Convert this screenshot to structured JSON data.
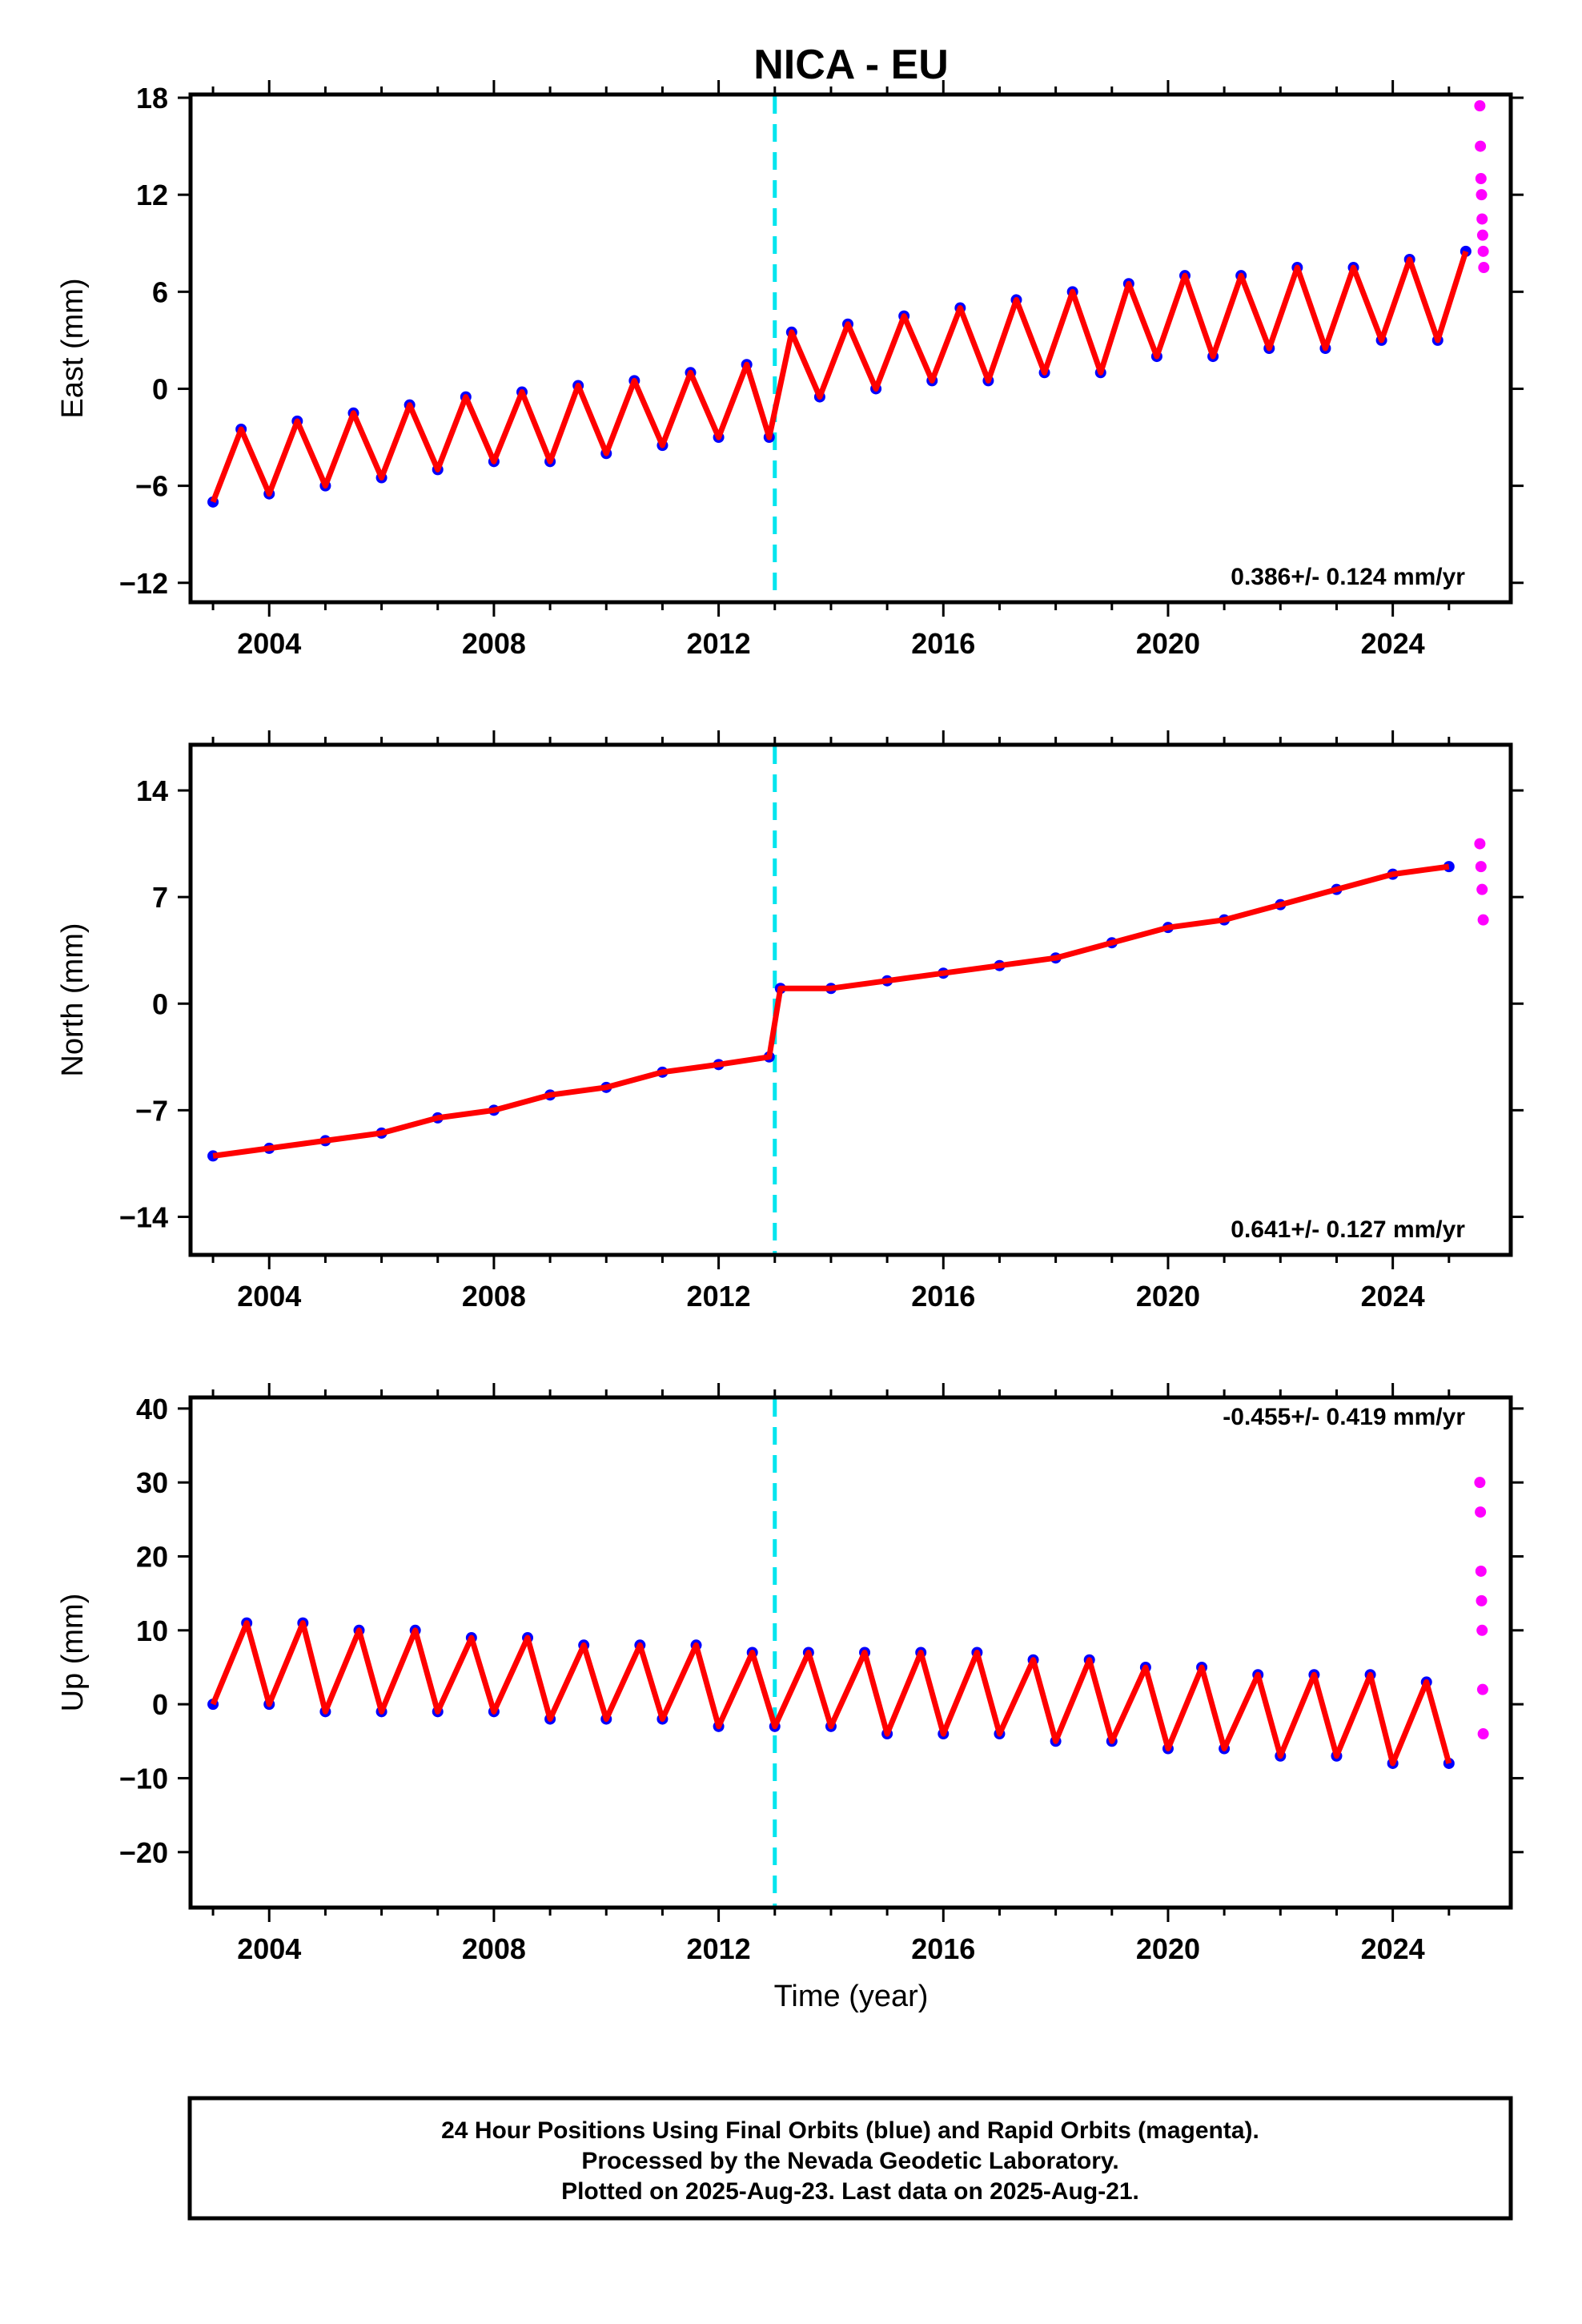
{
  "chart_data": {
    "type": "scatter",
    "title": "NICA - EU",
    "xlabel": "Time (year)",
    "xlim": [
      2002.6,
      2026.1
    ],
    "x_ticks": [
      2004,
      2008,
      2012,
      2016,
      2020,
      2024
    ],
    "x_tick_labels": [
      "2004",
      "2008",
      "2012",
      "2016",
      "2020",
      "2024"
    ],
    "discontinuity_year": 2013.0,
    "colors": {
      "final_orbits": "#0000ff",
      "rapid_orbits": "#ff00ff",
      "model": "#ff0000",
      "discontinuity": "#00e5ee"
    },
    "legend_text": "24 Hour Positions Using Final Orbits (blue) and Rapid Orbits (magenta).",
    "panels": [
      {
        "component": "east",
        "ylabel": "East (mm)",
        "ylim": [
          -13.2,
          18.2
        ],
        "y_ticks": [
          -12,
          -6,
          0,
          6,
          12,
          18
        ],
        "y_tick_labels": [
          "−12",
          "−6",
          "0",
          "6",
          "12",
          "18"
        ],
        "rate_text": "0.386+/- 0.124 mm/yr",
        "rate_position": "bottom-right",
        "series": [
          {
            "name": "Final Orbits (blue)",
            "color": "#0000ff",
            "x": [
              2003.0,
              2003.5,
              2004.0,
              2004.5,
              2005.0,
              2005.5,
              2006.0,
              2006.5,
              2007.0,
              2007.5,
              2008.0,
              2008.5,
              2009.0,
              2009.5,
              2010.0,
              2010.5,
              2011.0,
              2011.5,
              2012.0,
              2012.5,
              2012.9,
              2013.3,
              2013.8,
              2014.3,
              2014.8,
              2015.3,
              2015.8,
              2016.3,
              2016.8,
              2017.3,
              2017.8,
              2018.3,
              2018.8,
              2019.3,
              2019.8,
              2020.3,
              2020.8,
              2021.3,
              2021.8,
              2022.3,
              2022.8,
              2023.3,
              2023.8,
              2024.3,
              2024.8,
              2025.3
            ],
            "y": [
              -7,
              -2.5,
              -6.5,
              -2,
              -6,
              -1.5,
              -5.5,
              -1,
              -5,
              -0.5,
              -4.5,
              -0.2,
              -4.5,
              0.2,
              -4,
              0.5,
              -3.5,
              1,
              -3,
              1.5,
              -3,
              3.5,
              -0.5,
              4,
              0,
              4.5,
              0.5,
              5,
              0.5,
              5.5,
              1,
              6,
              1,
              6.5,
              2,
              7,
              2,
              7,
              2.5,
              7.5,
              2.5,
              7.5,
              3,
              8,
              3,
              8.5
            ]
          },
          {
            "name": "Rapid Orbits (magenta)",
            "color": "#ff00ff",
            "x": [
              2025.55,
              2025.56,
              2025.57,
              2025.58,
              2025.59,
              2025.6,
              2025.61,
              2025.62
            ],
            "y": [
              17.5,
              15,
              13,
              12,
              10.5,
              9.5,
              8.5,
              7.5
            ]
          }
        ]
      },
      {
        "component": "north",
        "ylabel": "North (mm)",
        "ylim": [
          -16.5,
          17.0
        ],
        "y_ticks": [
          -14,
          -7,
          0,
          7,
          14
        ],
        "y_tick_labels": [
          "−14",
          "−7",
          "0",
          "7",
          "14"
        ],
        "rate_text": "0.641+/- 0.127 mm/yr",
        "rate_position": "bottom-right",
        "series": [
          {
            "name": "Final Orbits (blue)",
            "color": "#0000ff",
            "x": [
              2003.0,
              2004.0,
              2005.0,
              2006.0,
              2007.0,
              2008.0,
              2009.0,
              2010.0,
              2011.0,
              2012.0,
              2012.9,
              2013.1,
              2014.0,
              2015.0,
              2016.0,
              2017.0,
              2018.0,
              2019.0,
              2020.0,
              2021.0,
              2022.0,
              2023.0,
              2024.0,
              2025.0
            ],
            "y": [
              -10,
              -9.5,
              -9,
              -8.5,
              -7.5,
              -7,
              -6,
              -5.5,
              -4.5,
              -4,
              -3.5,
              1,
              1,
              1.5,
              2,
              2.5,
              3,
              4,
              5,
              5.5,
              6.5,
              7.5,
              8.5,
              9
            ]
          },
          {
            "name": "Rapid Orbits (magenta)",
            "color": "#ff00ff",
            "x": [
              2025.55,
              2025.57,
              2025.59,
              2025.61
            ],
            "y": [
              10.5,
              9,
              7.5,
              5.5
            ]
          }
        ]
      },
      {
        "component": "up",
        "ylabel": "Up (mm)",
        "ylim": [
          -27.5,
          41.5
        ],
        "y_ticks": [
          -20,
          -10,
          0,
          10,
          20,
          30,
          40
        ],
        "y_tick_labels": [
          "−20",
          "−10",
          "0",
          "10",
          "20",
          "30",
          "40"
        ],
        "rate_text": "-0.455+/- 0.419 mm/yr",
        "rate_position": "top-right",
        "series": [
          {
            "name": "Final Orbits (blue)",
            "color": "#0000ff",
            "x": [
              2003.0,
              2003.6,
              2004.0,
              2004.6,
              2005.0,
              2005.6,
              2006.0,
              2006.6,
              2007.0,
              2007.6,
              2008.0,
              2008.6,
              2009.0,
              2009.6,
              2010.0,
              2010.6,
              2011.0,
              2011.6,
              2012.0,
              2012.6,
              2013.0,
              2013.6,
              2014.0,
              2014.6,
              2015.0,
              2015.6,
              2016.0,
              2016.6,
              2017.0,
              2017.6,
              2018.0,
              2018.6,
              2019.0,
              2019.6,
              2020.0,
              2020.6,
              2021.0,
              2021.6,
              2022.0,
              2022.6,
              2023.0,
              2023.6,
              2024.0,
              2024.6,
              2025.0
            ],
            "y": [
              0,
              11,
              0,
              11,
              -1,
              10,
              -1,
              10,
              -1,
              9,
              -1,
              9,
              -2,
              8,
              -2,
              8,
              -2,
              8,
              -3,
              7,
              -3,
              7,
              -3,
              7,
              -4,
              7,
              -4,
              7,
              -4,
              6,
              -5,
              6,
              -5,
              5,
              -6,
              5,
              -6,
              4,
              -7,
              4,
              -7,
              4,
              -8,
              3,
              -8
            ]
          },
          {
            "name": "Rapid Orbits (magenta)",
            "color": "#ff00ff",
            "x": [
              2025.55,
              2025.56,
              2025.57,
              2025.58,
              2025.59,
              2025.6,
              2025.61
            ],
            "y": [
              30,
              26,
              18,
              14,
              10,
              2,
              -4
            ]
          }
        ]
      }
    ],
    "footer": [
      "24 Hour Positions Using Final Orbits (blue) and Rapid Orbits (magenta).",
      "Processed by the Nevada Geodetic Laboratory.",
      "Plotted on 2025-Aug-23. Last data on 2025-Aug-21."
    ]
  }
}
